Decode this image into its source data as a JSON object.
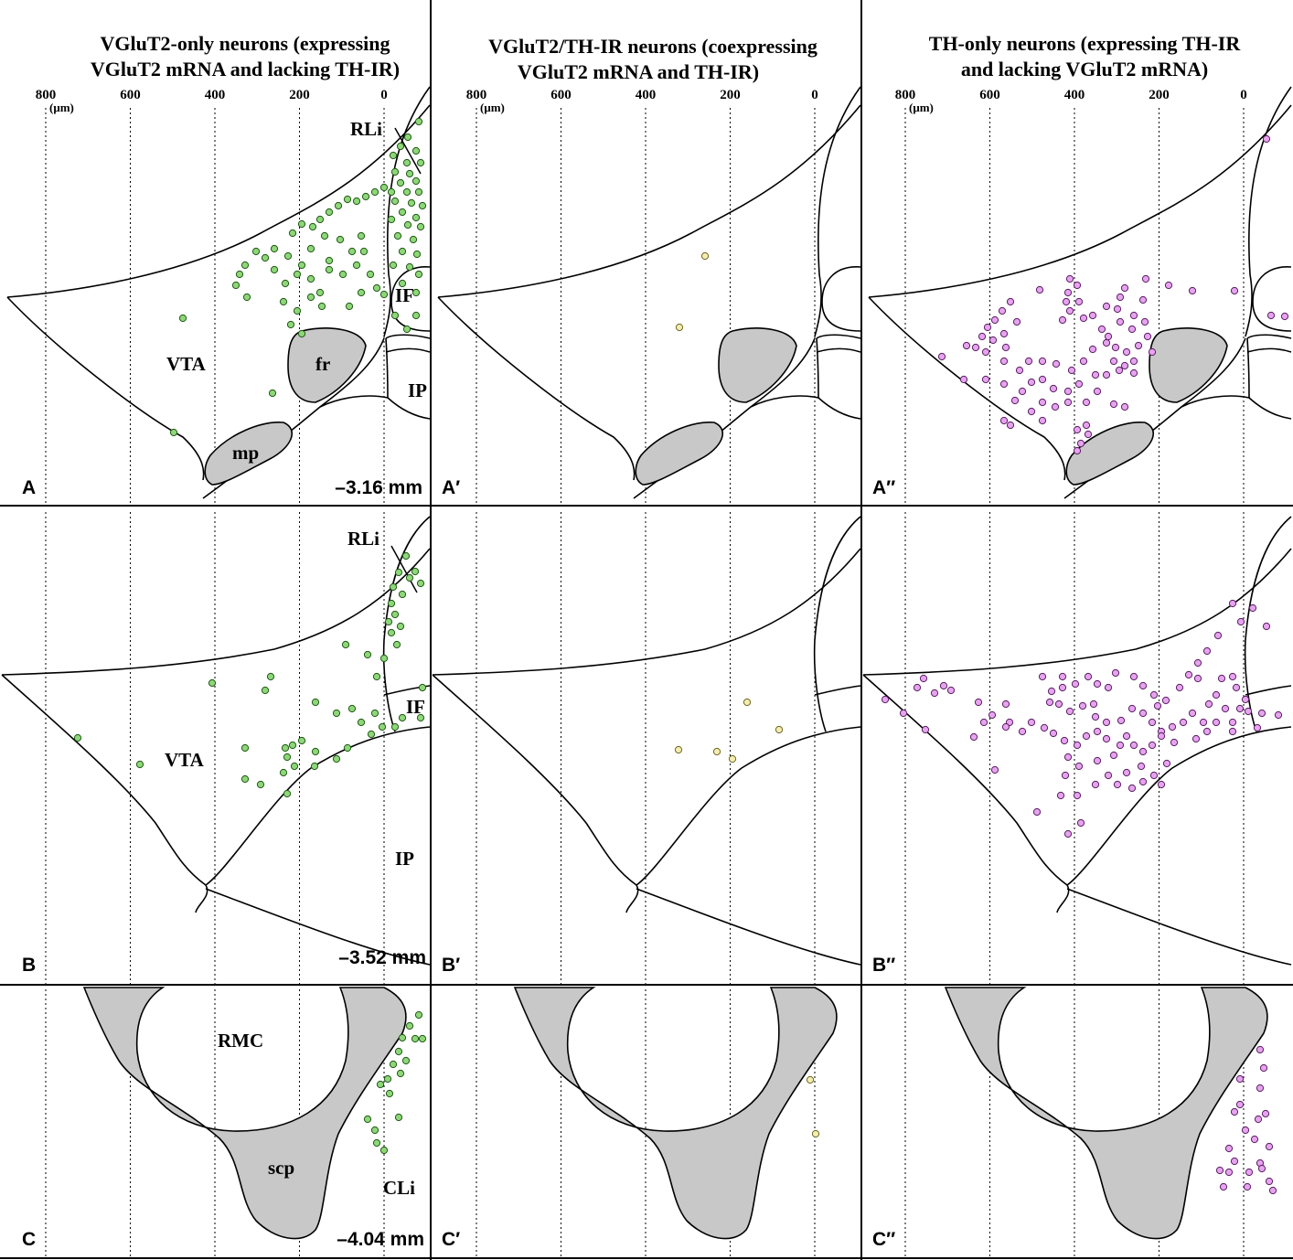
{
  "columns": [
    {
      "title_line1": "VGluT2-only neurons (expressing",
      "title_line2": "VGluT2 mRNA and lacking TH-IR)"
    },
    {
      "title_line1": "VGluT2/TH-IR neurons (coexpressing",
      "title_line2": "VGluT2 mRNA and TH-IR)"
    },
    {
      "title_line1": "TH-only neurons (expressing TH-IR",
      "title_line2": "and lacking VGluT2 mRNA)"
    }
  ],
  "scale": {
    "unit": "(μm)",
    "ticks": [
      "800",
      "600",
      "400",
      "200",
      "0"
    ]
  },
  "panel_labels": [
    "A",
    "A′",
    "A″",
    "B",
    "B′",
    "B″",
    "C",
    "C′",
    "C″"
  ],
  "levels": {
    "A": "–3.16 mm",
    "B": "–3.52 mm",
    "C": "–4.04 mm"
  },
  "regions": {
    "A": [
      "RLi",
      "IF",
      "VTA",
      "fr",
      "IP",
      "mp"
    ],
    "B": [
      "RLi",
      "IF",
      "VTA",
      "IP"
    ],
    "C": [
      "RMC",
      "scp",
      "CLi"
    ]
  },
  "colors": {
    "vglut2_only": "#8fd67a",
    "coexpressing": "#f3eeb0",
    "th_only": "#e6a3ee",
    "fiber_tract": "#c8c8c8",
    "outline": "#000000"
  },
  "legend_counts_note": ""
}
